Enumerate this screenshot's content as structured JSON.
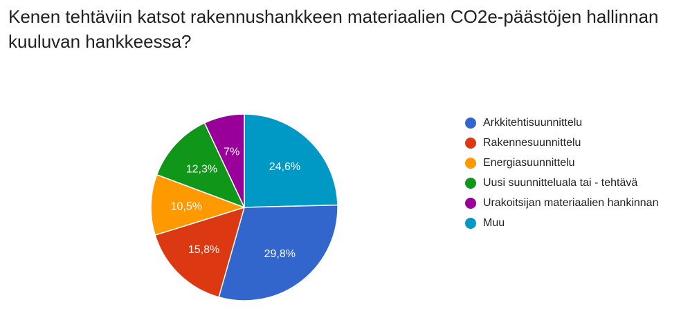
{
  "chart_data": {
    "type": "pie",
    "title": "Kenen tehtäviin katsot rakennushankkeen materiaalien CO2e-päästöjen hallinnan kuuluvan hankkeessa?",
    "legend_position": "right",
    "slices": [
      {
        "name": "Arkkitehtisuunnittelu",
        "value": 29.8,
        "label": "29,8%",
        "color": "#3366cc"
      },
      {
        "name": "Rakennesuunnittelu",
        "value": 15.8,
        "label": "15,8%",
        "color": "#dc3912"
      },
      {
        "name": "Energiasuunnittelu",
        "value": 10.5,
        "label": "10,5%",
        "color": "#ff9900"
      },
      {
        "name": "Uusi suunnitteluala tai - tehtävä",
        "value": 12.3,
        "label": "12,3%",
        "color": "#109618"
      },
      {
        "name": "Urakoitsijan materiaalien hankinnan",
        "value": 7.0,
        "label": "7%",
        "color": "#990099"
      },
      {
        "name": "Muu",
        "value": 24.6,
        "label": "24,6%",
        "color": "#0099c6"
      }
    ]
  }
}
